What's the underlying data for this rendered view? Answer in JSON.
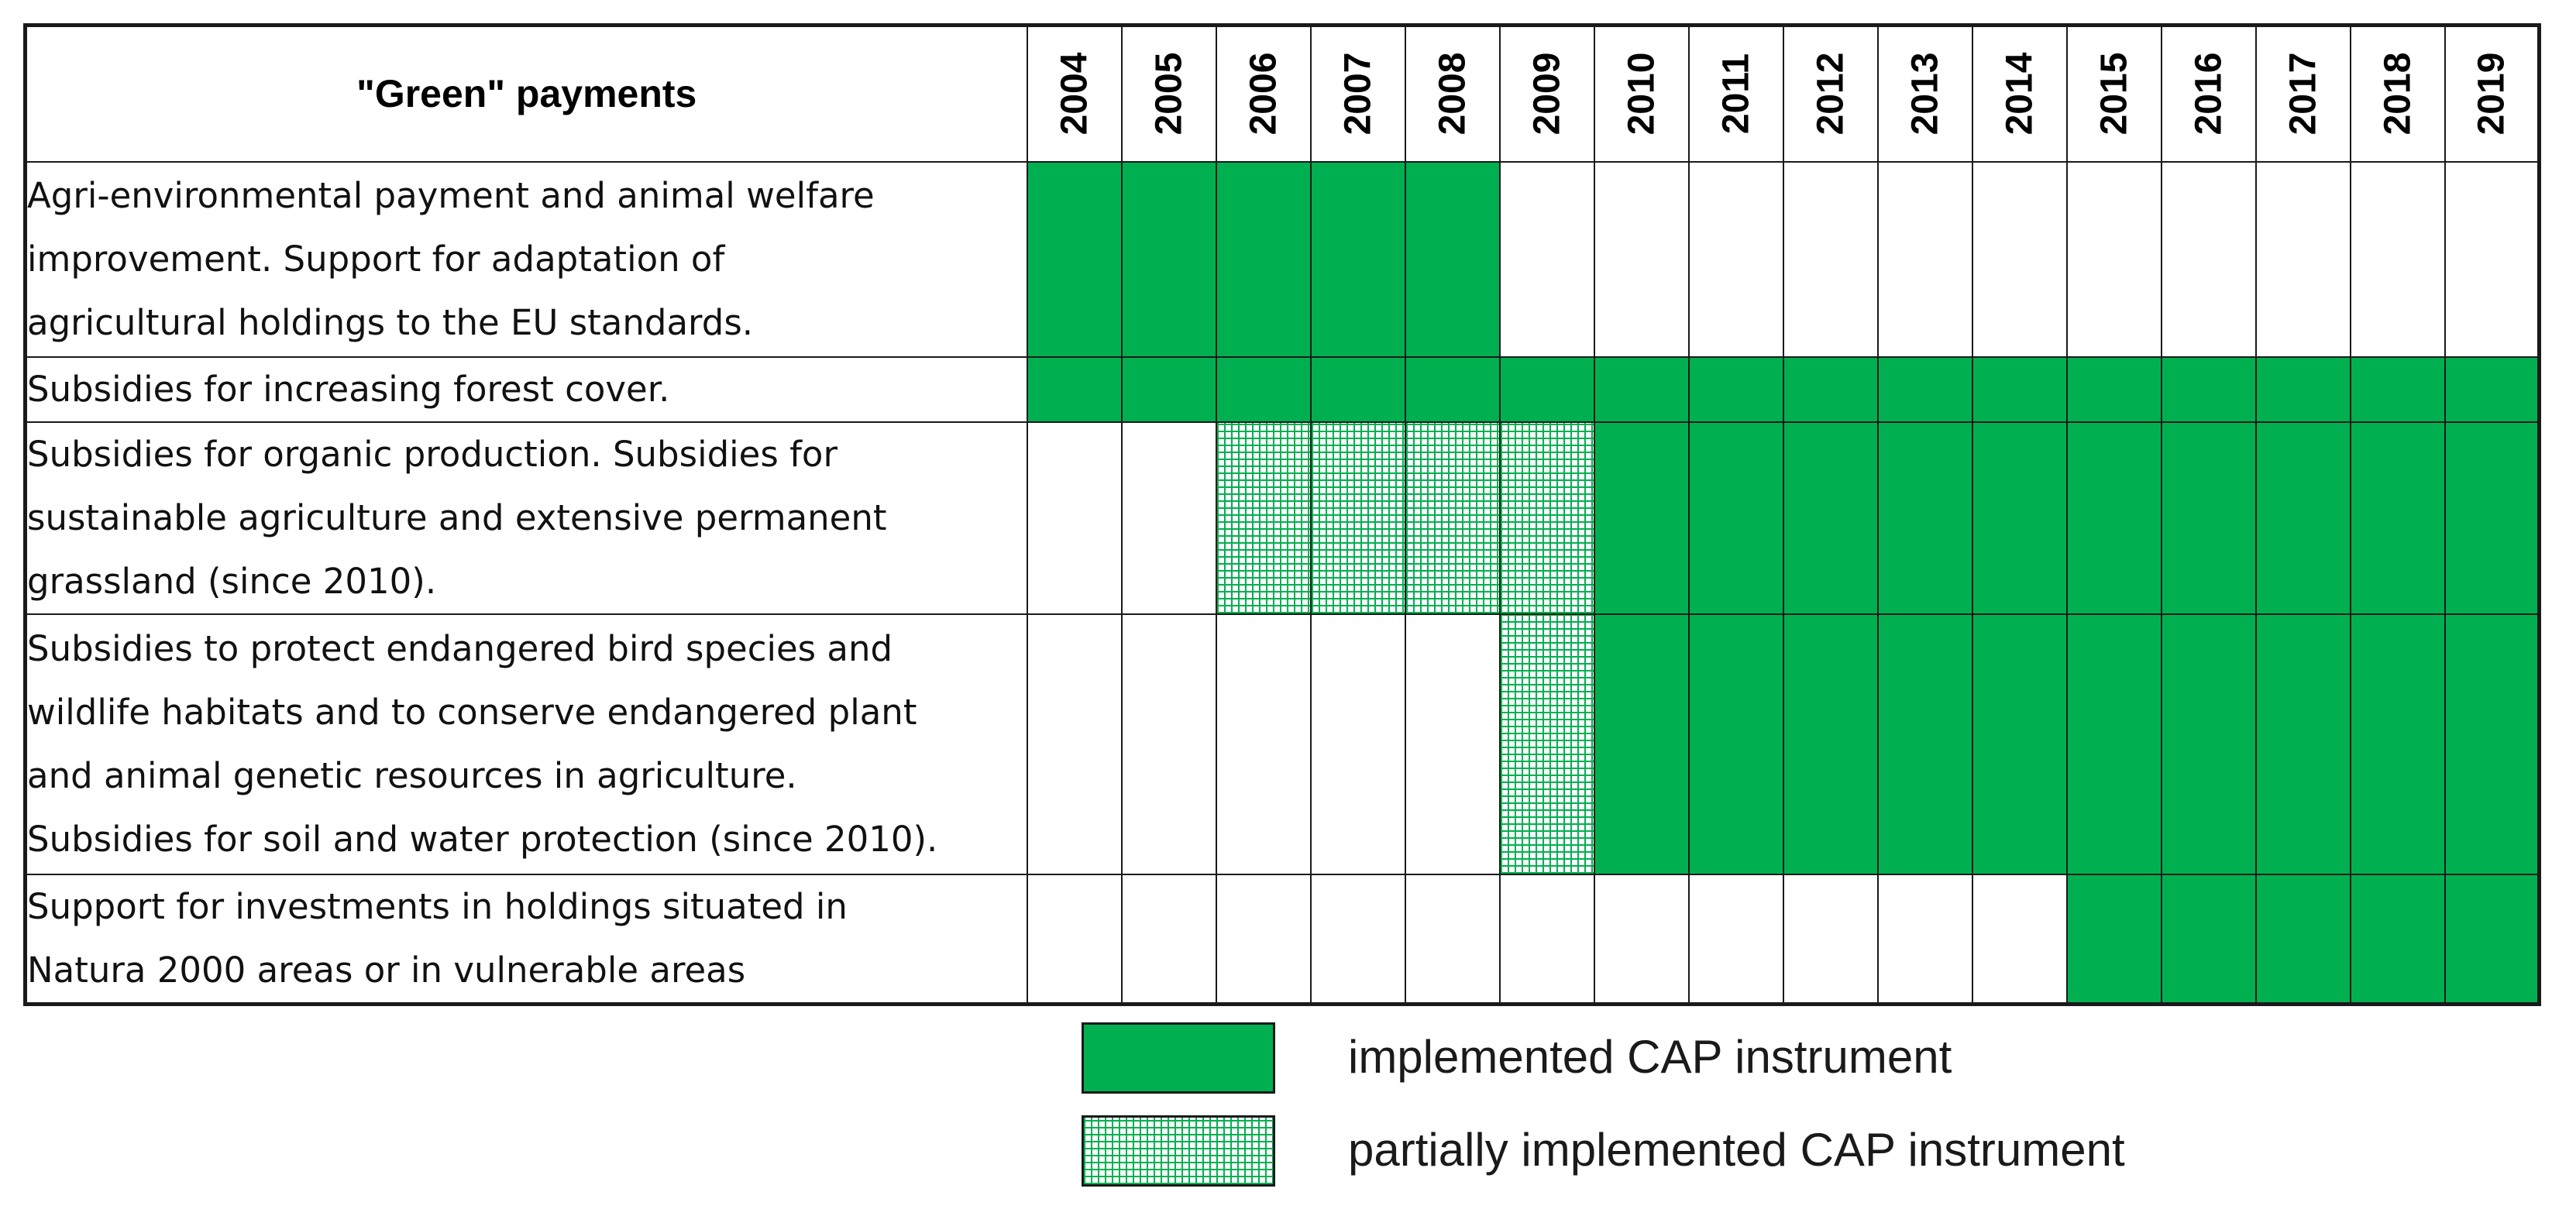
{
  "table": {
    "title": "\"Green\" payments",
    "years": [
      "2004",
      "2005",
      "2006",
      "2007",
      "2008",
      "2009",
      "2010",
      "2011",
      "2012",
      "2013",
      "2014",
      "2015",
      "2016",
      "2017",
      "2018",
      "2019"
    ],
    "rows": [
      {
        "lines": [
          "Agri-environmental payment and animal welfare",
          "improvement. Support for adaptation of",
          "agricultural holdings to the EU standards."
        ],
        "status": [
          "full",
          "full",
          "full",
          "full",
          "full",
          "none",
          "none",
          "none",
          "none",
          "none",
          "none",
          "none",
          "none",
          "none",
          "none",
          "none"
        ]
      },
      {
        "lines": [
          "Subsidies for increasing forest cover."
        ],
        "status": [
          "full",
          "full",
          "full",
          "full",
          "full",
          "full",
          "full",
          "full",
          "full",
          "full",
          "full",
          "full",
          "full",
          "full",
          "full",
          "full"
        ]
      },
      {
        "lines": [
          "Subsidies for organic production. Subsidies for",
          "sustainable agriculture and extensive permanent",
          "grassland (since 2010)."
        ],
        "status": [
          "none",
          "none",
          "partial",
          "partial",
          "partial",
          "partial",
          "full",
          "full",
          "full",
          "full",
          "full",
          "full",
          "full",
          "full",
          "full",
          "full"
        ]
      },
      {
        "lines": [
          "Subsidies to protect endangered bird species and",
          "wildlife habitats and to conserve endangered plant",
          "and animal genetic resources in agriculture.",
          "Subsidies for soil and water protection (since 2010)."
        ],
        "status": [
          "none",
          "none",
          "none",
          "none",
          "none",
          "partial",
          "full",
          "full",
          "full",
          "full",
          "full",
          "full",
          "full",
          "full",
          "full",
          "full"
        ]
      },
      {
        "lines": [
          "Support for investments in holdings situated in",
          "Natura 2000 areas or in vulnerable areas"
        ],
        "status": [
          "none",
          "none",
          "none",
          "none",
          "none",
          "none",
          "none",
          "none",
          "none",
          "none",
          "none",
          "full",
          "full",
          "full",
          "full",
          "full"
        ]
      }
    ]
  },
  "legend": {
    "items": [
      {
        "key": "full",
        "label": "implemented CAP instrument"
      },
      {
        "key": "partial",
        "label": "partially implemented CAP instrument"
      }
    ]
  },
  "colors": {
    "implemented": "#00b050",
    "border": "#1a1a1a"
  }
}
